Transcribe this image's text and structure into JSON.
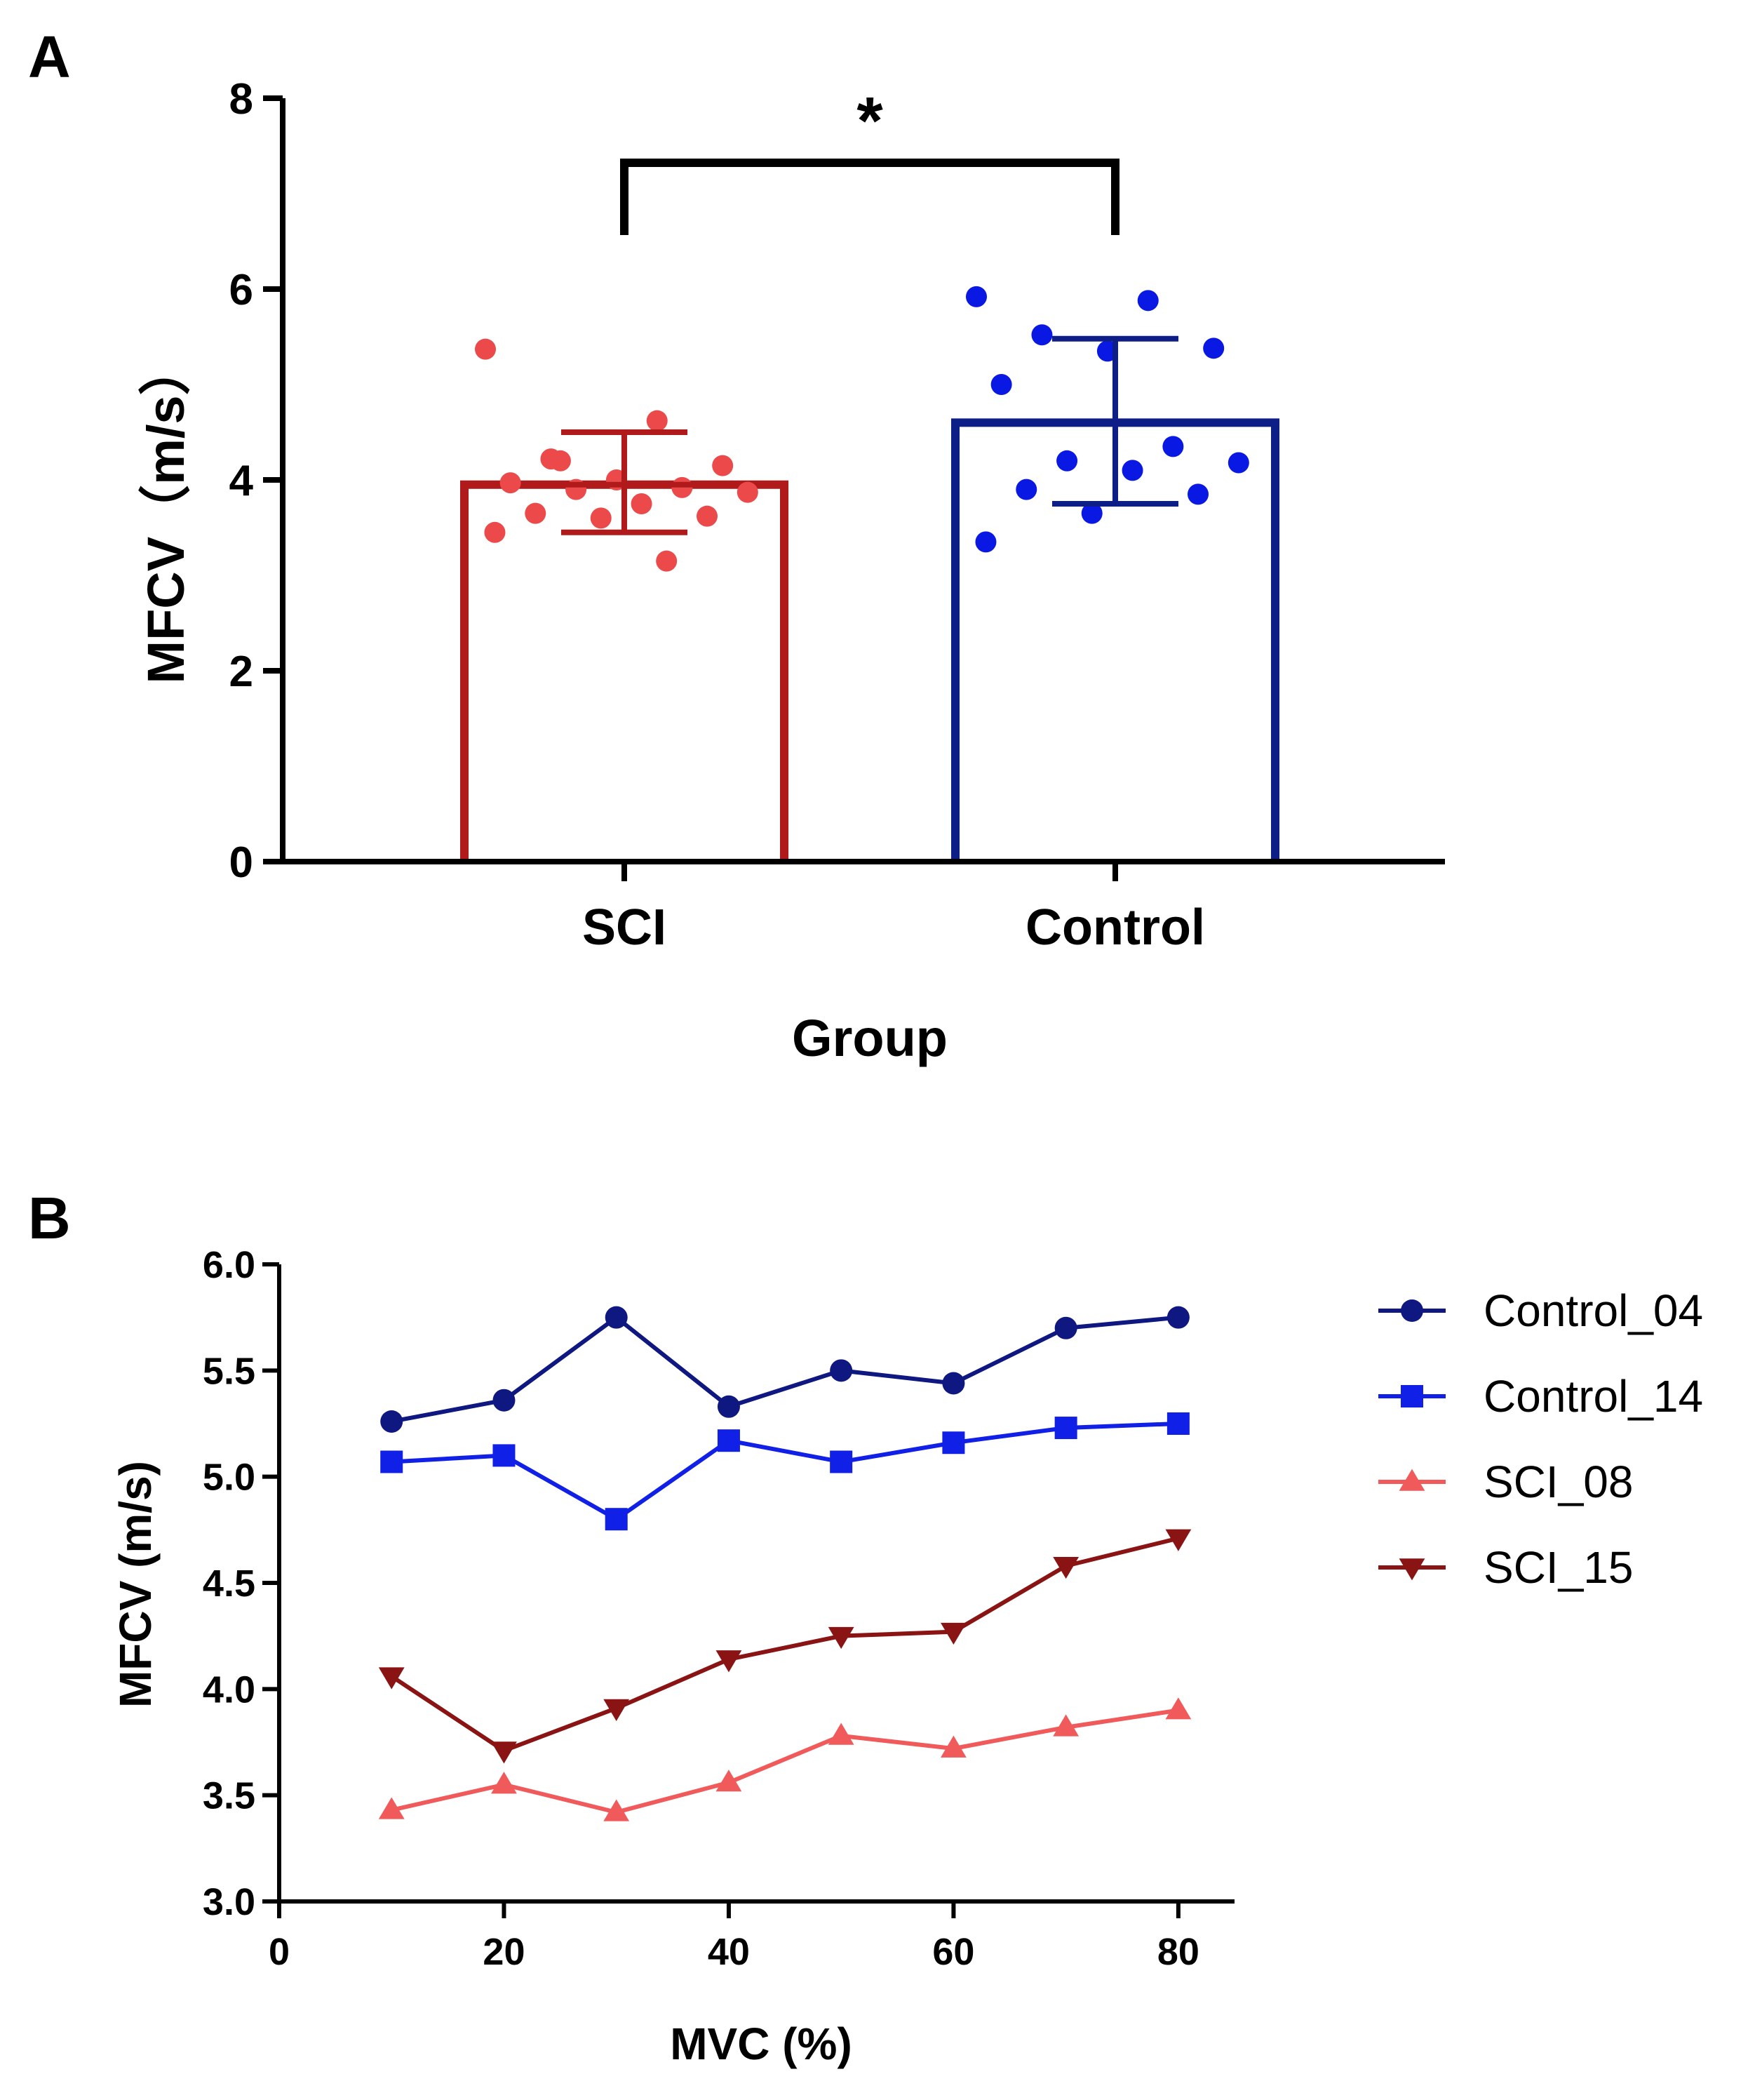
{
  "chart_data": [
    {
      "panel_label": "A",
      "type": "bar",
      "xlabel": "Group",
      "ylabel": "MFCV（m/s）",
      "categories": [
        "SCI",
        "Control"
      ],
      "values": [
        3.95,
        4.6
      ],
      "error": [
        {
          "low": 3.45,
          "high": 4.5
        },
        {
          "low": 3.75,
          "high": 5.48
        }
      ],
      "colors": [
        "#b01a1a",
        "#0d1f86"
      ],
      "point_colors": [
        "#ec4a4a",
        "#0a18e4"
      ],
      "points": [
        [
          5.37,
          4.62,
          4.22,
          4.15,
          4.0,
          3.97,
          3.92,
          3.9,
          3.87,
          3.75,
          3.65,
          3.62,
          3.6,
          3.45,
          3.15,
          4.2
        ],
        [
          5.92,
          5.88,
          5.52,
          5.38,
          5.35,
          5.0,
          4.35,
          4.2,
          4.18,
          4.1,
          3.9,
          3.85,
          3.65,
          3.35
        ]
      ],
      "ylim": [
        0,
        8
      ],
      "yticks": [
        "0",
        "2",
        "4",
        "6",
        "8"
      ],
      "significance": "*"
    },
    {
      "panel_label": "B",
      "type": "line",
      "xlabel": "MVC (%)",
      "ylabel": "MFCV (m/s)",
      "x": [
        10,
        20,
        30,
        40,
        50,
        60,
        70,
        80
      ],
      "xlim": [
        0,
        85
      ],
      "ylim": [
        3.0,
        6.0
      ],
      "xticks": [
        "0",
        "20",
        "40",
        "60",
        "80"
      ],
      "yticks": [
        "3.0",
        "3.5",
        "4.0",
        "4.5",
        "5.0",
        "5.5",
        "6.0"
      ],
      "series": [
        {
          "name": "Control_04",
          "marker": "circle",
          "color": "#0f1780",
          "values": [
            5.26,
            5.36,
            5.75,
            5.33,
            5.5,
            5.44,
            5.7,
            5.75
          ]
        },
        {
          "name": "Control_14",
          "marker": "square",
          "color": "#1020e6",
          "values": [
            5.07,
            5.1,
            4.8,
            5.17,
            5.07,
            5.16,
            5.23,
            5.25
          ]
        },
        {
          "name": "SCI_08",
          "marker": "triangle-up",
          "color": "#f05a5a",
          "values": [
            3.43,
            3.55,
            3.42,
            3.56,
            3.78,
            3.72,
            3.82,
            3.9
          ]
        },
        {
          "name": "SCI_15",
          "marker": "triangle-down",
          "color": "#8a1414",
          "values": [
            4.06,
            3.71,
            3.91,
            4.14,
            4.25,
            4.27,
            4.58,
            4.71
          ]
        }
      ],
      "legend_position": "right"
    }
  ]
}
